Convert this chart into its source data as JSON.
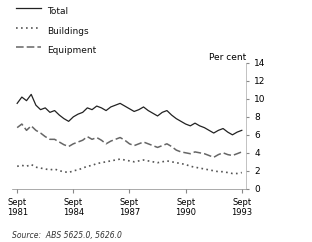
{
  "ylabel_right": "Per cent",
  "source_text": "Source:  ABS 5625.0, 5626.0",
  "ylim": [
    0,
    14
  ],
  "yticks": [
    0,
    2,
    4,
    6,
    8,
    10,
    12,
    14
  ],
  "xlim": [
    1981.5,
    1994.0
  ],
  "x_ticks": [
    1981.75,
    1984.75,
    1987.75,
    1990.75,
    1993.75
  ],
  "x_tick_labels": [
    "Sept\n1981",
    "Sept\n1984",
    "Sept\n1987",
    "Sept\n1990",
    "Sept\n1993"
  ],
  "total": [
    9.5,
    10.2,
    9.8,
    10.5,
    9.3,
    8.8,
    9.0,
    8.5,
    8.7,
    8.2,
    7.8,
    7.5,
    8.0,
    8.3,
    8.5,
    9.0,
    8.8,
    9.2,
    9.0,
    8.7,
    9.1,
    9.3,
    9.5,
    9.2,
    8.9,
    8.6,
    8.8,
    9.1,
    8.7,
    8.4,
    8.1,
    8.5,
    8.7,
    8.2,
    7.8,
    7.5,
    7.2,
    7.0,
    7.3,
    7.0,
    6.8,
    6.5,
    6.2,
    6.5,
    6.7,
    6.3,
    6.0,
    6.3,
    6.5
  ],
  "buildings": [
    2.5,
    2.6,
    2.5,
    2.7,
    2.4,
    2.3,
    2.2,
    2.1,
    2.2,
    2.0,
    1.9,
    1.8,
    2.0,
    2.1,
    2.3,
    2.5,
    2.6,
    2.8,
    2.9,
    3.0,
    3.1,
    3.2,
    3.3,
    3.2,
    3.1,
    3.0,
    3.1,
    3.2,
    3.1,
    3.0,
    2.9,
    3.0,
    3.1,
    3.0,
    2.9,
    2.8,
    2.7,
    2.5,
    2.4,
    2.3,
    2.2,
    2.1,
    2.0,
    1.9,
    1.9,
    1.8,
    1.7,
    1.7,
    1.8
  ],
  "equipment": [
    6.8,
    7.2,
    6.5,
    7.0,
    6.5,
    6.2,
    5.8,
    5.5,
    5.5,
    5.2,
    4.9,
    4.7,
    5.0,
    5.2,
    5.4,
    5.8,
    5.5,
    5.7,
    5.4,
    5.0,
    5.3,
    5.5,
    5.7,
    5.4,
    5.0,
    4.8,
    5.0,
    5.2,
    5.0,
    4.8,
    4.6,
    4.8,
    5.0,
    4.7,
    4.3,
    4.1,
    4.0,
    3.9,
    4.1,
    4.0,
    3.9,
    3.7,
    3.5,
    3.8,
    4.0,
    3.8,
    3.7,
    3.9,
    4.1
  ],
  "line_color": "#222222",
  "dot_color": "#555555",
  "dash_color": "#666666"
}
